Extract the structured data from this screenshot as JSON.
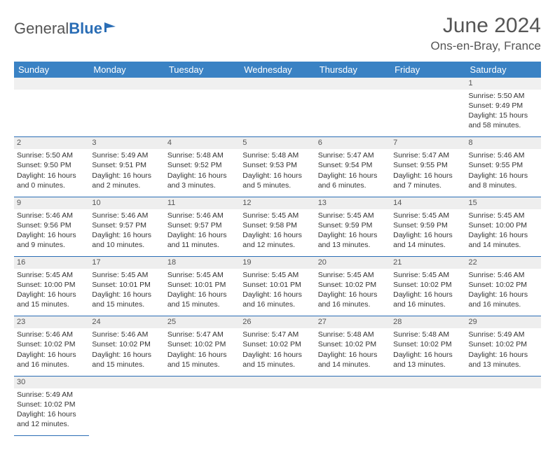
{
  "logo": {
    "text1": "General",
    "text2": "Blue"
  },
  "title": "June 2024",
  "location": "Ons-en-Bray, France",
  "colors": {
    "header_bg": "#3a82c4",
    "header_fg": "#ffffff",
    "daynum_bg": "#eeeeee",
    "border": "#2a6db5",
    "text": "#333333",
    "title_text": "#555555"
  },
  "dayHeaders": [
    "Sunday",
    "Monday",
    "Tuesday",
    "Wednesday",
    "Thursday",
    "Friday",
    "Saturday"
  ],
  "weeks": [
    [
      null,
      null,
      null,
      null,
      null,
      null,
      {
        "n": "1",
        "sr": "5:50 AM",
        "ss": "9:49 PM",
        "dl": "15 hours and 58 minutes."
      }
    ],
    [
      {
        "n": "2",
        "sr": "5:50 AM",
        "ss": "9:50 PM",
        "dl": "16 hours and 0 minutes."
      },
      {
        "n": "3",
        "sr": "5:49 AM",
        "ss": "9:51 PM",
        "dl": "16 hours and 2 minutes."
      },
      {
        "n": "4",
        "sr": "5:48 AM",
        "ss": "9:52 PM",
        "dl": "16 hours and 3 minutes."
      },
      {
        "n": "5",
        "sr": "5:48 AM",
        "ss": "9:53 PM",
        "dl": "16 hours and 5 minutes."
      },
      {
        "n": "6",
        "sr": "5:47 AM",
        "ss": "9:54 PM",
        "dl": "16 hours and 6 minutes."
      },
      {
        "n": "7",
        "sr": "5:47 AM",
        "ss": "9:55 PM",
        "dl": "16 hours and 7 minutes."
      },
      {
        "n": "8",
        "sr": "5:46 AM",
        "ss": "9:55 PM",
        "dl": "16 hours and 8 minutes."
      }
    ],
    [
      {
        "n": "9",
        "sr": "5:46 AM",
        "ss": "9:56 PM",
        "dl": "16 hours and 9 minutes."
      },
      {
        "n": "10",
        "sr": "5:46 AM",
        "ss": "9:57 PM",
        "dl": "16 hours and 10 minutes."
      },
      {
        "n": "11",
        "sr": "5:46 AM",
        "ss": "9:57 PM",
        "dl": "16 hours and 11 minutes."
      },
      {
        "n": "12",
        "sr": "5:45 AM",
        "ss": "9:58 PM",
        "dl": "16 hours and 12 minutes."
      },
      {
        "n": "13",
        "sr": "5:45 AM",
        "ss": "9:59 PM",
        "dl": "16 hours and 13 minutes."
      },
      {
        "n": "14",
        "sr": "5:45 AM",
        "ss": "9:59 PM",
        "dl": "16 hours and 14 minutes."
      },
      {
        "n": "15",
        "sr": "5:45 AM",
        "ss": "10:00 PM",
        "dl": "16 hours and 14 minutes."
      }
    ],
    [
      {
        "n": "16",
        "sr": "5:45 AM",
        "ss": "10:00 PM",
        "dl": "16 hours and 15 minutes."
      },
      {
        "n": "17",
        "sr": "5:45 AM",
        "ss": "10:01 PM",
        "dl": "16 hours and 15 minutes."
      },
      {
        "n": "18",
        "sr": "5:45 AM",
        "ss": "10:01 PM",
        "dl": "16 hours and 15 minutes."
      },
      {
        "n": "19",
        "sr": "5:45 AM",
        "ss": "10:01 PM",
        "dl": "16 hours and 16 minutes."
      },
      {
        "n": "20",
        "sr": "5:45 AM",
        "ss": "10:02 PM",
        "dl": "16 hours and 16 minutes."
      },
      {
        "n": "21",
        "sr": "5:45 AM",
        "ss": "10:02 PM",
        "dl": "16 hours and 16 minutes."
      },
      {
        "n": "22",
        "sr": "5:46 AM",
        "ss": "10:02 PM",
        "dl": "16 hours and 16 minutes."
      }
    ],
    [
      {
        "n": "23",
        "sr": "5:46 AM",
        "ss": "10:02 PM",
        "dl": "16 hours and 16 minutes."
      },
      {
        "n": "24",
        "sr": "5:46 AM",
        "ss": "10:02 PM",
        "dl": "16 hours and 15 minutes."
      },
      {
        "n": "25",
        "sr": "5:47 AM",
        "ss": "10:02 PM",
        "dl": "16 hours and 15 minutes."
      },
      {
        "n": "26",
        "sr": "5:47 AM",
        "ss": "10:02 PM",
        "dl": "16 hours and 15 minutes."
      },
      {
        "n": "27",
        "sr": "5:48 AM",
        "ss": "10:02 PM",
        "dl": "16 hours and 14 minutes."
      },
      {
        "n": "28",
        "sr": "5:48 AM",
        "ss": "10:02 PM",
        "dl": "16 hours and 13 minutes."
      },
      {
        "n": "29",
        "sr": "5:49 AM",
        "ss": "10:02 PM",
        "dl": "16 hours and 13 minutes."
      }
    ],
    [
      {
        "n": "30",
        "sr": "5:49 AM",
        "ss": "10:02 PM",
        "dl": "16 hours and 12 minutes."
      },
      null,
      null,
      null,
      null,
      null,
      null
    ]
  ],
  "labels": {
    "sunrise": "Sunrise:",
    "sunset": "Sunset:",
    "daylight": "Daylight:"
  }
}
